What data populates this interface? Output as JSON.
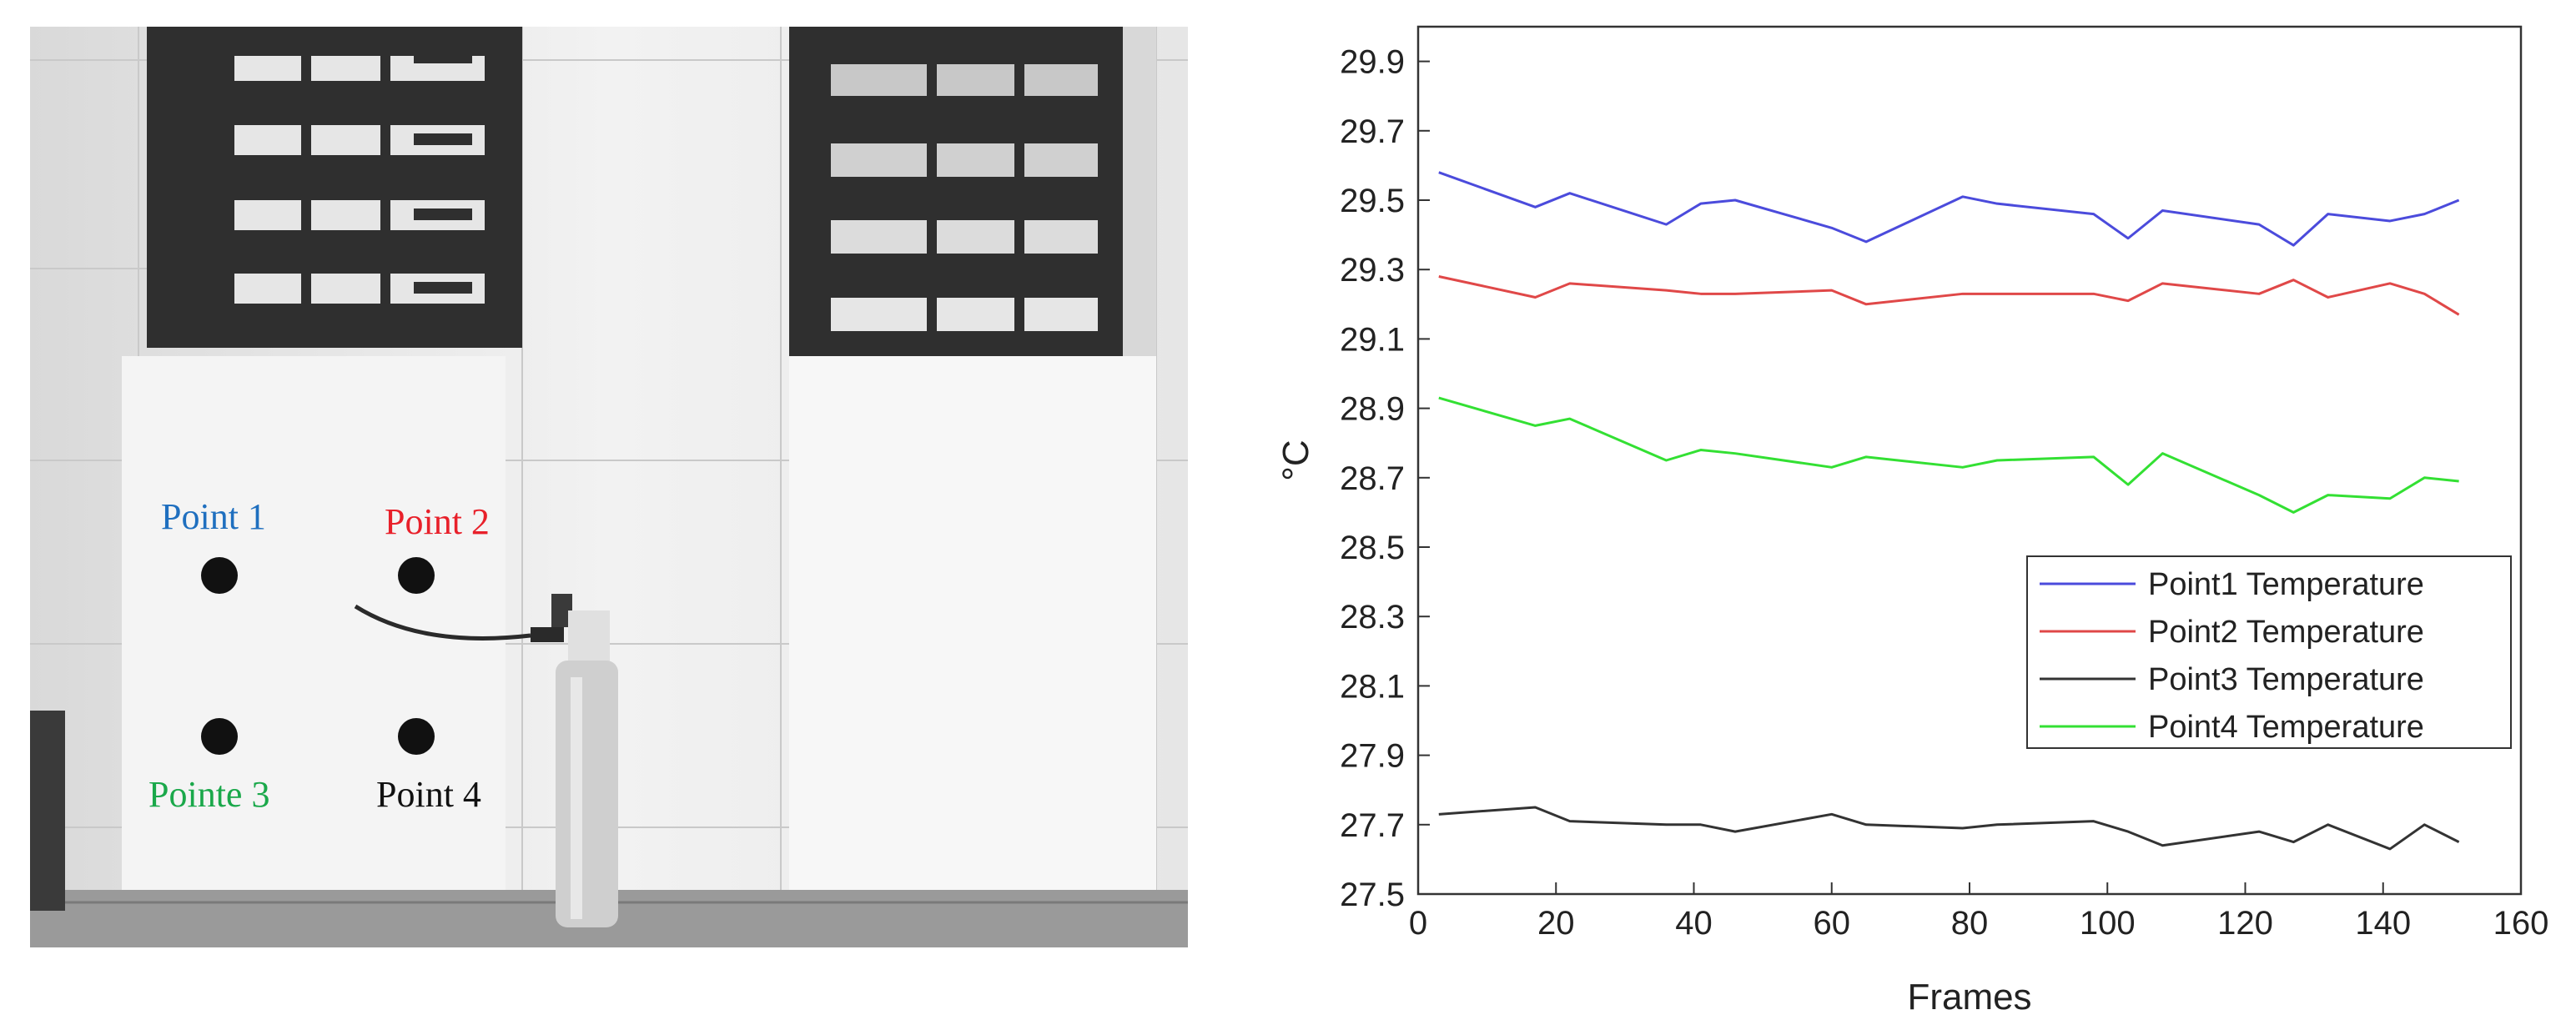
{
  "photo": {
    "labels": [
      {
        "text": "Point 1",
        "color": "#1f6fbf"
      },
      {
        "text": "Point 2",
        "color": "#e8202a"
      },
      {
        "text": "Pointe 3",
        "color": "#1aa84a"
      },
      {
        "text": "Point 4",
        "color": "#111111"
      }
    ]
  },
  "chart_data": {
    "type": "line",
    "xlabel": "Frames",
    "ylabel": "°C",
    "xlim": [
      0,
      160
    ],
    "ylim": [
      27.5,
      30.0
    ],
    "xticks": [
      0,
      20,
      40,
      60,
      80,
      100,
      120,
      140,
      160
    ],
    "yticks": [
      27.5,
      27.7,
      27.9,
      28.1,
      28.3,
      28.5,
      28.7,
      28.9,
      29.1,
      29.3,
      29.5,
      29.7,
      29.9
    ],
    "grid": false,
    "legend_position": "lower-right",
    "x": [
      3,
      17,
      22,
      36,
      41,
      46,
      60,
      65,
      79,
      84,
      98,
      103,
      108,
      122,
      127,
      132,
      141,
      146,
      151
    ],
    "series": [
      {
        "name": "Point1 Temperature",
        "color": "#4b4bdc",
        "values": [
          29.58,
          29.48,
          29.52,
          29.43,
          29.49,
          29.5,
          29.42,
          29.38,
          29.51,
          29.49,
          29.46,
          29.39,
          29.47,
          29.43,
          29.37,
          29.46,
          29.44,
          29.46,
          29.5
        ]
      },
      {
        "name": "Point2 Temperature",
        "color": "#e04848",
        "values": [
          29.28,
          29.22,
          29.26,
          29.24,
          29.23,
          29.23,
          29.24,
          29.2,
          29.23,
          29.23,
          29.23,
          29.21,
          29.26,
          29.23,
          29.27,
          29.22,
          29.26,
          29.23,
          29.17
        ]
      },
      {
        "name": "Point3 Temperature",
        "color": "#333333",
        "values": [
          27.73,
          27.75,
          27.71,
          27.7,
          27.7,
          27.68,
          27.73,
          27.7,
          27.69,
          27.7,
          27.71,
          27.68,
          27.64,
          27.68,
          27.65,
          27.7,
          27.63,
          27.7,
          27.65
        ]
      },
      {
        "name": "Point4 Temperature",
        "color": "#33e033",
        "values": [
          28.93,
          28.85,
          28.87,
          28.75,
          28.78,
          28.77,
          28.73,
          28.76,
          28.73,
          28.75,
          28.76,
          28.68,
          28.77,
          28.65,
          28.6,
          28.65,
          28.64,
          28.7,
          28.69
        ]
      }
    ]
  }
}
